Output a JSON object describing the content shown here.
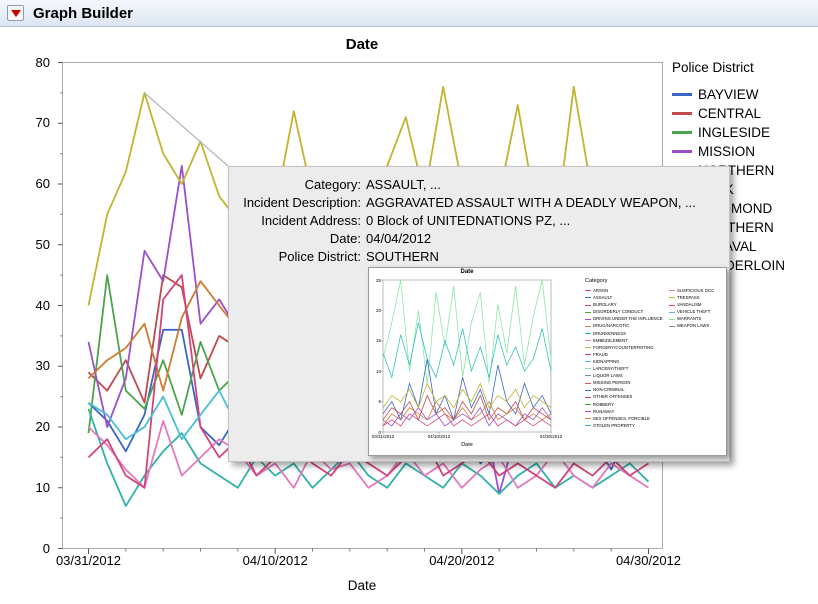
{
  "window": {
    "title": "Graph Builder"
  },
  "chart_data": {
    "type": "line",
    "title": "Date",
    "xlabel": "Date",
    "ylabel": "",
    "ylim": [
      0,
      80
    ],
    "yticks": [
      0,
      10,
      20,
      30,
      40,
      50,
      60,
      70,
      80
    ],
    "days": 31,
    "xticks": [
      {
        "day": 0,
        "label": "03/31/2012"
      },
      {
        "day": 10,
        "label": "04/10/2012"
      },
      {
        "day": 20,
        "label": "04/20/2012"
      },
      {
        "day": 30,
        "label": "04/30/2012"
      }
    ],
    "legend_title": "Police District",
    "legend_position": "right",
    "grid": false,
    "callout": {
      "day": 3,
      "value": 75
    },
    "series": [
      {
        "name": "BAYVIEW",
        "color": "#3B65C4",
        "values": [
          24,
          21,
          16,
          22,
          36,
          36,
          20,
          17,
          22,
          19,
          15,
          21,
          23,
          18,
          15,
          20,
          17,
          22,
          18,
          15,
          20,
          14,
          18,
          22,
          16,
          20,
          15,
          18,
          13,
          20,
          15
        ]
      },
      {
        "name": "CENTRAL",
        "color": "#C0494D",
        "values": [
          29,
          26,
          31,
          24,
          45,
          43,
          28,
          35,
          33,
          29,
          32,
          27,
          30,
          25,
          28,
          23,
          31,
          27,
          33,
          28,
          24,
          29,
          26,
          31,
          22,
          26,
          29,
          24,
          27,
          31,
          28
        ]
      },
      {
        "name": "INGLESIDE",
        "color": "#4CA44C",
        "values": [
          19,
          45,
          26,
          23,
          31,
          22,
          34,
          26,
          29,
          31,
          24,
          27,
          31,
          22,
          26,
          28,
          23,
          31,
          26,
          22,
          28,
          24,
          27,
          22,
          29,
          26,
          22,
          27,
          24,
          20,
          26
        ]
      },
      {
        "name": "MISSION",
        "color": "#9A50C8",
        "values": [
          34,
          20,
          28,
          49,
          44,
          63,
          37,
          41,
          36,
          42,
          35,
          38,
          45,
          30,
          36,
          28,
          37,
          34,
          41,
          36,
          30,
          25,
          9,
          20,
          28,
          29,
          36,
          30,
          22,
          28,
          25
        ]
      },
      {
        "name": "NORTHERN",
        "color": "#CE7C32",
        "values": [
          28,
          31,
          33,
          37,
          26,
          38,
          44,
          40,
          36,
          34,
          30,
          32,
          36,
          30,
          28,
          33,
          29,
          36,
          32,
          28,
          35,
          30,
          27,
          33,
          28,
          31,
          34,
          28,
          30,
          26,
          30
        ]
      },
      {
        "name": "PARK",
        "color": "#2FB2A9",
        "values": [
          23,
          14,
          7,
          12,
          16,
          19,
          14,
          12,
          10,
          15,
          12,
          14,
          10,
          13,
          16,
          12,
          10,
          14,
          12,
          10,
          14,
          12,
          9,
          12,
          14,
          10,
          12,
          10,
          12,
          14,
          11
        ]
      },
      {
        "name": "RICHMOND",
        "color": "#E07ABF",
        "values": [
          20,
          17,
          13,
          10,
          21,
          12,
          15,
          18,
          16,
          12,
          14,
          10,
          16,
          13,
          14,
          10,
          12,
          16,
          12,
          14,
          10,
          13,
          15,
          10,
          12,
          16,
          12,
          10,
          14,
          12,
          10
        ]
      },
      {
        "name": "SOUTHERN",
        "color": "#C0B52F",
        "values": [
          40,
          55,
          62,
          75,
          65,
          60,
          67,
          58,
          54,
          60,
          56,
          72,
          58,
          52,
          60,
          55,
          63,
          71,
          58,
          76,
          60,
          54,
          58,
          73,
          55,
          52,
          76,
          58,
          50,
          55,
          40
        ]
      },
      {
        "name": "TARAVAL",
        "color": "#D4447C",
        "values": [
          15,
          18,
          12,
          10,
          41,
          45,
          20,
          15,
          18,
          12,
          15,
          18,
          14,
          12,
          16,
          14,
          12,
          15,
          18,
          12,
          14,
          16,
          12,
          14,
          12,
          10,
          14,
          12,
          15,
          12,
          14
        ]
      },
      {
        "name": "TENDERLOIN",
        "color": "#49BFD4",
        "values": [
          24,
          22,
          18,
          20,
          25,
          18,
          22,
          26,
          20,
          22,
          18,
          21,
          24,
          18,
          20,
          22,
          18,
          20,
          24,
          20,
          18,
          22,
          20,
          18,
          22,
          20,
          18,
          20,
          22,
          18,
          20
        ]
      }
    ]
  },
  "tooltip": {
    "lines": [
      {
        "label": "Category",
        "value": "ASSAULT, ..."
      },
      {
        "label": "Incident Description",
        "value": "AGGRAVATED ASSAULT WITH A DEADLY WEAPON, ..."
      },
      {
        "label": "Incident Address",
        "value": "0 Block of UNITEDNATIONS PZ, ..."
      },
      {
        "label": "Date",
        "value": "04/04/2012"
      },
      {
        "label": "Police District",
        "value": "SOUTHERN"
      }
    ],
    "thumbnail": {
      "title": "Date",
      "xlabel": "Date",
      "legend_title": "Category",
      "ylim": [
        0,
        25
      ],
      "yticks": [
        0,
        5,
        10,
        15,
        20,
        25
      ],
      "xticks": [
        {
          "t": 0,
          "label": "03/31/2012"
        },
        {
          "t": 0.333,
          "label": "04/10/2012"
        },
        {
          "t": 1,
          "label": "04/30/2012"
        }
      ],
      "categories_col1": [
        "ARSON",
        "ASSAULT",
        "BURGLARY",
        "DISORDERLY CONDUCT",
        "DRIVING UNDER THE INFLUENCE",
        "DRUG/NARCOTIC",
        "DRUNKENNESS",
        "EMBEZZLEMENT",
        "FORGERY/COUNTERFEITING",
        "FRAUD",
        "KIDNAPPING",
        "LARCENY/THEFT",
        "LIQUOR LAWS",
        "MISSING PERSON",
        "NON-CRIMINAL",
        "OTHER OFFENSES",
        "ROBBERY",
        "RUNAWAY",
        "SEX OFFENSES, FORCIBLE",
        "STOLEN PROPERTY"
      ],
      "categories_col2": [
        "SUSPICIOUS OCC",
        "TRESPASS",
        "VANDALISM",
        "VEHICLE THEFT",
        "WARRANTS",
        "WEAPON LAWS"
      ],
      "palette": [
        "#E0565A",
        "#3B65C4",
        "#C0494D",
        "#4CA44C",
        "#9A50C8",
        "#CE7C32",
        "#2FB2A9",
        "#E07ABF",
        "#C0B52F",
        "#D4447C",
        "#49BFD4",
        "#8CE6A6",
        "#888888"
      ],
      "sparklines": [
        {
          "color": "#8CE6A6",
          "values": [
            12,
            18,
            25,
            10,
            20,
            8,
            23,
            14,
            24,
            9,
            18,
            23,
            8,
            21,
            13,
            24,
            11,
            19,
            25,
            12
          ]
        },
        {
          "color": "#35C4B5",
          "values": [
            13,
            9,
            16,
            11,
            18,
            12,
            9,
            15,
            11,
            17,
            10,
            14,
            9,
            16,
            11,
            14,
            10,
            12,
            17,
            10
          ]
        },
        {
          "color": "#3B65C4",
          "values": [
            3,
            5,
            2,
            8,
            4,
            12,
            3,
            6,
            2,
            9,
            4,
            7,
            3,
            11,
            5,
            3,
            8,
            4,
            6,
            3
          ]
        },
        {
          "color": "#C0494D",
          "values": [
            2,
            4,
            3,
            5,
            2,
            6,
            3,
            4,
            2,
            5,
            3,
            6,
            2,
            4,
            3,
            5,
            2,
            4,
            3,
            2
          ]
        },
        {
          "color": "#CE7C32",
          "values": [
            1,
            3,
            2,
            4,
            3,
            2,
            5,
            3,
            2,
            4,
            2,
            3,
            5,
            2,
            3,
            4,
            2,
            3,
            2,
            3
          ]
        },
        {
          "color": "#9A50C8",
          "values": [
            2,
            1,
            3,
            2,
            4,
            2,
            3,
            1,
            2,
            3,
            2,
            4,
            1,
            3,
            2,
            1,
            3,
            2,
            4,
            2
          ]
        },
        {
          "color": "#C0B52F",
          "values": [
            4,
            6,
            5,
            7,
            4,
            8,
            5,
            6,
            4,
            7,
            5,
            8,
            4,
            6,
            5,
            7,
            4,
            6,
            5,
            4
          ]
        },
        {
          "color": "#D4447C",
          "values": [
            1,
            2,
            1,
            3,
            2,
            1,
            2,
            3,
            1,
            2,
            1,
            2,
            3,
            1,
            2,
            1,
            2,
            1,
            2,
            1
          ]
        }
      ]
    }
  }
}
